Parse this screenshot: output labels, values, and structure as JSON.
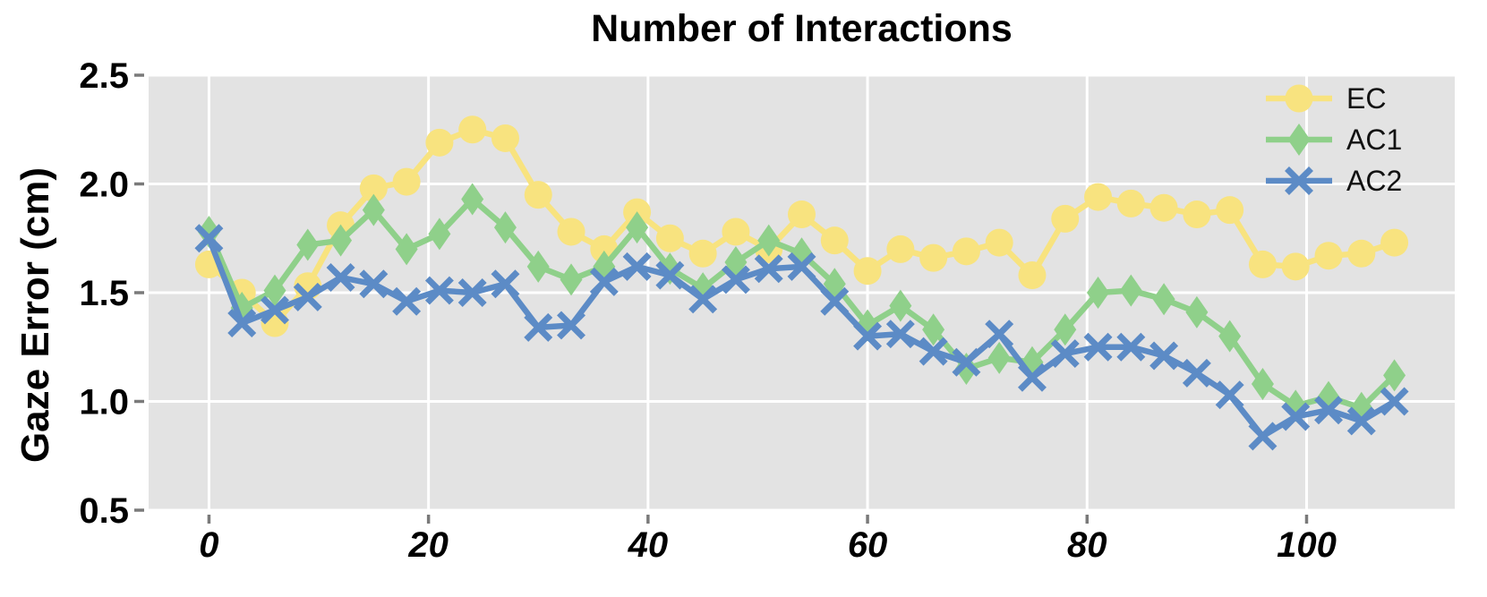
{
  "chart_data": {
    "type": "line",
    "title": "Number of Interactions",
    "xlabel": "",
    "ylabel": "Gaze Error (cm)",
    "grid": true,
    "legend_position": "upper right",
    "plot_bg": "#e3e3e3",
    "grid_color": "#ffffff",
    "tick_color": "#7a7a7a",
    "xlim": [
      -5.5,
      113.5
    ],
    "ylim": [
      0.5,
      2.5
    ],
    "x_ticks": [
      0,
      20,
      40,
      60,
      80,
      100
    ],
    "y_ticks": [
      0.5,
      1.0,
      1.5,
      2.0,
      2.5
    ],
    "x": [
      0,
      3,
      6,
      9,
      12,
      15,
      18,
      21,
      24,
      27,
      30,
      33,
      36,
      39,
      42,
      45,
      48,
      51,
      54,
      57,
      60,
      63,
      66,
      69,
      72,
      75,
      78,
      81,
      84,
      87,
      90,
      93,
      96,
      99,
      102,
      105,
      108
    ],
    "series": [
      {
        "name": "EC",
        "marker": "circle",
        "color": "#f8e37f",
        "values": [
          1.63,
          1.5,
          1.36,
          1.53,
          1.81,
          1.98,
          2.01,
          2.19,
          2.25,
          2.21,
          1.95,
          1.78,
          1.7,
          1.87,
          1.75,
          1.68,
          1.78,
          1.7,
          1.86,
          1.74,
          1.6,
          1.7,
          1.66,
          1.69,
          1.73,
          1.58,
          1.84,
          1.94,
          1.91,
          1.89,
          1.86,
          1.88,
          1.63,
          1.62,
          1.67,
          1.68,
          1.73
        ]
      },
      {
        "name": "AC1",
        "marker": "diamond",
        "color": "#8fd08a",
        "values": [
          1.78,
          1.43,
          1.51,
          1.72,
          1.74,
          1.88,
          1.7,
          1.77,
          1.93,
          1.8,
          1.62,
          1.56,
          1.62,
          1.8,
          1.61,
          1.52,
          1.64,
          1.74,
          1.68,
          1.54,
          1.35,
          1.44,
          1.33,
          1.15,
          1.2,
          1.18,
          1.33,
          1.5,
          1.51,
          1.47,
          1.41,
          1.3,
          1.08,
          0.98,
          1.02,
          0.97,
          1.12
        ]
      },
      {
        "name": "AC2",
        "marker": "x",
        "color": "#5c8bc6",
        "values": [
          1.75,
          1.36,
          1.42,
          1.48,
          1.57,
          1.54,
          1.46,
          1.51,
          1.5,
          1.54,
          1.34,
          1.35,
          1.55,
          1.62,
          1.58,
          1.47,
          1.56,
          1.61,
          1.62,
          1.46,
          1.3,
          1.31,
          1.23,
          1.18,
          1.31,
          1.11,
          1.22,
          1.25,
          1.25,
          1.21,
          1.13,
          1.03,
          0.84,
          0.93,
          0.96,
          0.91,
          1.0
        ]
      }
    ]
  }
}
